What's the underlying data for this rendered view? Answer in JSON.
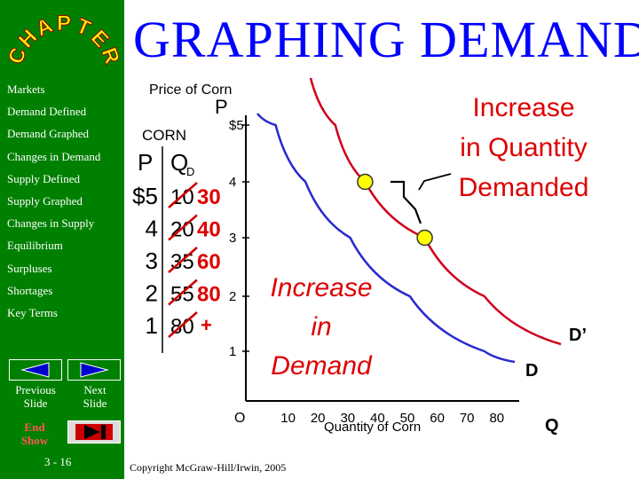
{
  "slide": {
    "title": "GRAPHING DEMAND",
    "logo_text": "CHAPTER",
    "page_number": "3 - 16",
    "copyright": "Copyright McGraw-Hill/Irwin, 2005"
  },
  "sidebar": {
    "items": [
      {
        "label": "Markets"
      },
      {
        "label": "Demand Defined"
      },
      {
        "label": "Demand Graphed"
      },
      {
        "label": "Changes in Demand"
      },
      {
        "label": "Supply Defined"
      },
      {
        "label": "Supply Graphed"
      },
      {
        "label": "Changes in Supply"
      },
      {
        "label": "Equilibrium"
      },
      {
        "label": "Surpluses"
      },
      {
        "label": "Shortages"
      },
      {
        "label": "Key Terms"
      }
    ],
    "previous_label": "Previous Slide",
    "next_label": "Next Slide",
    "end_label": "End Show"
  },
  "schedule": {
    "caption": "CORN",
    "price_header": "P",
    "qty_header": "Q",
    "qty_subscript": "D",
    "rows": [
      {
        "price": "$5",
        "old_qty": "10",
        "new_qty": "30"
      },
      {
        "price": "4",
        "old_qty": "20",
        "new_qty": "40"
      },
      {
        "price": "3",
        "old_qty": "35",
        "new_qty": "60"
      },
      {
        "price": "2",
        "old_qty": "55",
        "new_qty": "80"
      },
      {
        "price": "1",
        "old_qty": "80",
        "new_qty": "+"
      }
    ]
  },
  "graph": {
    "y_title": "Price of Corn",
    "y_letter": "P",
    "x_title": "Quantity of Corn",
    "x_letter": "Q",
    "y_ticks": [
      "$5",
      "4",
      "3",
      "2",
      "1"
    ],
    "origin": "O",
    "x_ticks": [
      "10",
      "20",
      "30",
      "40",
      "50",
      "60",
      "70",
      "80"
    ],
    "curve_d_label": "D",
    "curve_d2_label": "D’",
    "annotation_quantity": "Increase in Quantity Demanded",
    "annotation_quantity_lines": [
      "Increase",
      "in Quantity",
      "Demanded"
    ],
    "annotation_demand": "Increase in Demand",
    "annotation_demand_lines": [
      "Increase",
      "in",
      "Demand"
    ],
    "colors": {
      "demand": "#2a2ad0",
      "new_demand": "#d0001a",
      "point": "#ffff00",
      "annotation": "#dd0000",
      "axis": "#000000"
    }
  },
  "chart_data": {
    "type": "line",
    "title": "",
    "xlabel": "Quantity of Corn",
    "ylabel": "Price of Corn",
    "xlim": [
      0,
      80
    ],
    "ylim": [
      0,
      5
    ],
    "x_ticks": [
      10,
      20,
      30,
      40,
      50,
      60,
      70,
      80
    ],
    "y_ticks": [
      1,
      2,
      3,
      4,
      5
    ],
    "series": [
      {
        "name": "D",
        "color": "#2a2ad0",
        "points": [
          [
            10,
            5
          ],
          [
            20,
            4
          ],
          [
            35,
            3
          ],
          [
            55,
            2
          ],
          [
            80,
            1
          ]
        ]
      },
      {
        "name": "D’",
        "color": "#d0001a",
        "points": [
          [
            30,
            5
          ],
          [
            40,
            4
          ],
          [
            60,
            3
          ],
          [
            80,
            2
          ]
        ]
      }
    ],
    "highlighted_points": [
      [
        40,
        4
      ],
      [
        60,
        3
      ]
    ],
    "annotations": [
      "Increase in Quantity Demanded",
      "Increase in Demand"
    ],
    "grid": false
  }
}
